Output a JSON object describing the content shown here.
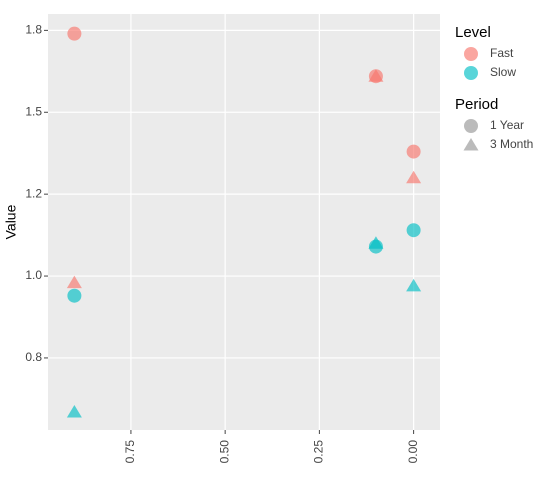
{
  "chart_data": {
    "type": "scatter",
    "y_label": "Value",
    "xlim": [
      0.97,
      -0.07
    ],
    "xticks": [
      {
        "value": 0.75,
        "label": "0.75"
      },
      {
        "value": 0.5,
        "label": "0.50"
      },
      {
        "value": 0.25,
        "label": "0.25"
      },
      {
        "value": 0,
        "label": "0.00"
      }
    ],
    "ylim": [
      0.53,
      1.8
    ],
    "yticks": [
      {
        "value": 0.75,
        "label": "0.8"
      },
      {
        "value": 1,
        "label": "1.0"
      },
      {
        "value": 1.25,
        "label": "1.2"
      },
      {
        "value": 1.5,
        "label": "1.5"
      },
      {
        "value": 1.75,
        "label": "1.8"
      }
    ],
    "grid": true,
    "legends": [
      {
        "title": "Level",
        "items": [
          {
            "name": "Fast",
            "color": "#f8766d"
          },
          {
            "name": "Slow",
            "color": "#00bfc4"
          }
        ]
      },
      {
        "title": "Period",
        "items": [
          {
            "name": "1 Year",
            "marker": "circle"
          },
          {
            "name": "3 Month",
            "marker": "triangle"
          }
        ]
      }
    ],
    "series": [
      {
        "color": "#f8766d",
        "marker": "circle",
        "x": [
          0.9,
          0.1,
          0
        ],
        "values": [
          1.74,
          1.61,
          1.38
        ]
      },
      {
        "color": "#f8766d",
        "marker": "triangle",
        "x": [
          0.9,
          0.1,
          0
        ],
        "values": [
          0.98,
          1.61,
          1.3
        ]
      },
      {
        "color": "#00bfc4",
        "marker": "circle",
        "x": [
          0.9,
          0.1,
          0
        ],
        "values": [
          0.94,
          1.09,
          1.14
        ]
      },
      {
        "color": "#00bfc4",
        "marker": "triangle",
        "x": [
          0.9,
          0.1,
          0
        ],
        "values": [
          0.585,
          1.1,
          0.97
        ]
      }
    ]
  }
}
